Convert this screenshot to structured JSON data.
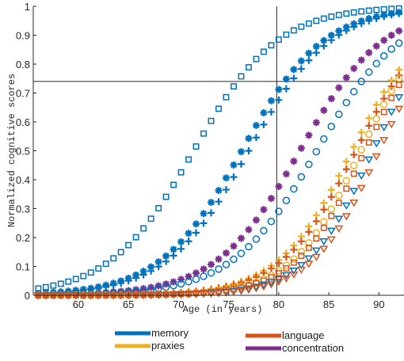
{
  "chart_data": {
    "type": "scatter",
    "xlabel": "Age (in years)",
    "ylabel": "Normalized cognitive scores",
    "xlim": [
      55.5,
      92.5
    ],
    "ylim": [
      0,
      1
    ],
    "xticks": [
      60,
      65,
      70,
      75,
      80,
      85,
      90
    ],
    "yticks": [
      0,
      0.1,
      0.2,
      0.3,
      0.4,
      0.5,
      0.6,
      0.7,
      0.8,
      0.9,
      1
    ],
    "reference_lines": {
      "x": 79.8,
      "y": 0.74
    },
    "x_start": 56,
    "x_end": 92,
    "x_step": 0.75,
    "legend": {
      "placement": "below",
      "entries": [
        {
          "label": "memory",
          "color": "#0072BD"
        },
        {
          "label": "language",
          "color": "#D95319"
        },
        {
          "label": "praxies",
          "color": "#EDB120"
        },
        {
          "label": "concentration",
          "color": "#7E2F8E"
        }
      ]
    },
    "series": [
      {
        "color": "#0072BD",
        "marker": "square",
        "midpoint": 71.5,
        "slope": 0.24
      },
      {
        "color": "#0072BD",
        "marker": "asterisk",
        "midpoint": 76.3,
        "slope": 0.245
      },
      {
        "color": "#0072BD",
        "marker": "plus",
        "midpoint": 77.0,
        "slope": 0.245
      },
      {
        "color": "#7E2F8E",
        "marker": "asterisk",
        "midpoint": 82.1,
        "slope": 0.24
      },
      {
        "color": "#0072BD",
        "marker": "circle",
        "midpoint": 83.8,
        "slope": 0.235
      },
      {
        "color": "#EDB120",
        "marker": "plus",
        "midpoint": 87.3,
        "slope": 0.27
      },
      {
        "color": "#D95319",
        "marker": "plus",
        "midpoint": 87.7,
        "slope": 0.27
      },
      {
        "color": "#EDB120",
        "marker": "circle",
        "midpoint": 88.2,
        "slope": 0.29
      },
      {
        "color": "#D95319",
        "marker": "square",
        "midpoint": 88.6,
        "slope": 0.29
      },
      {
        "color": "#0072BD",
        "marker": "triangle-down",
        "midpoint": 89.4,
        "slope": 0.3
      },
      {
        "color": "#D95319",
        "marker": "triangle-down",
        "midpoint": 90.0,
        "slope": 0.3
      }
    ]
  }
}
